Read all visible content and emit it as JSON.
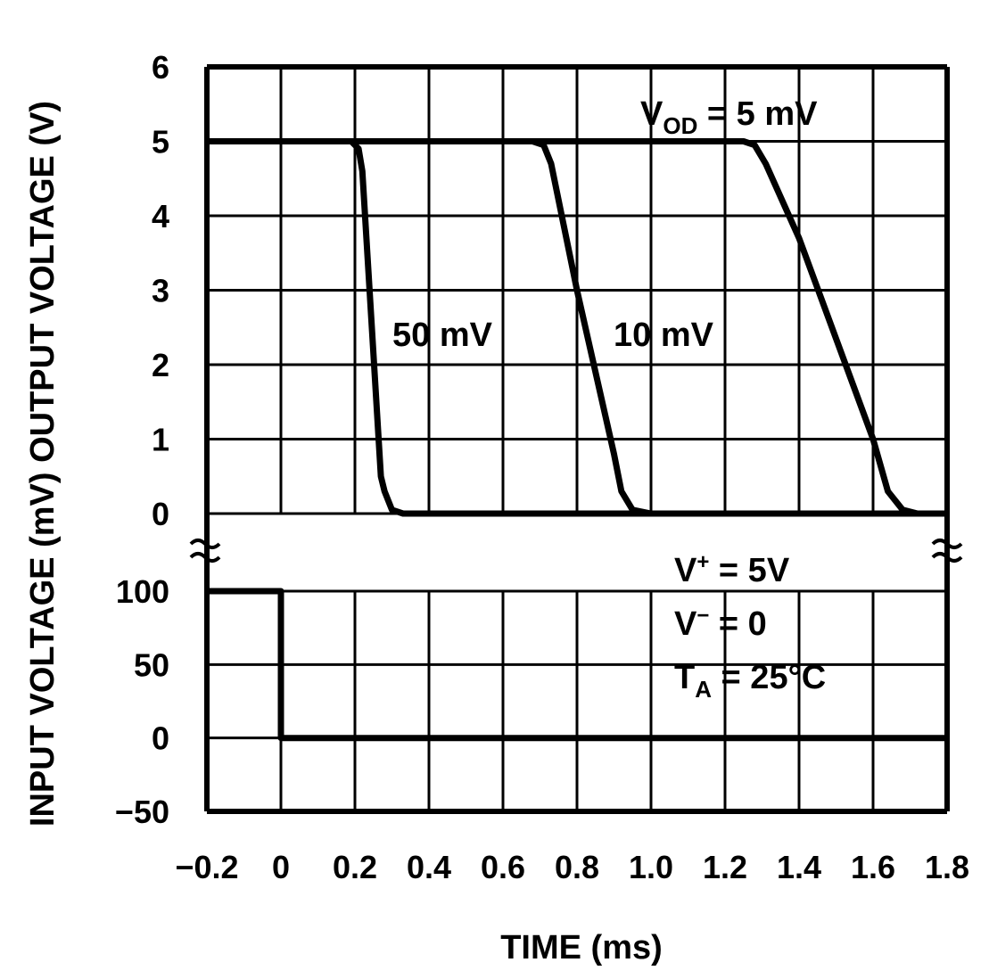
{
  "chart_data": {
    "type": "line",
    "xlabel": "TIME (ms)",
    "ylabel": "INPUT VOLTAGE (mV) OUTPUT VOLTAGE (V)",
    "xlim": [
      -0.2,
      1.8
    ],
    "x_ticks": [
      "−0.2",
      "0",
      "0.2",
      "0.4",
      "0.6",
      "0.8",
      "1.0",
      "1.2",
      "1.4",
      "1.6",
      "1.8"
    ],
    "grid": true,
    "output_axis": {
      "unit": "V",
      "ylim": [
        0,
        6
      ],
      "ticks": [
        "0",
        "1",
        "2",
        "3",
        "4",
        "5",
        "6"
      ]
    },
    "input_axis": {
      "unit": "mV",
      "ylim": [
        -50,
        100
      ],
      "ticks": [
        "100",
        "50",
        "0",
        "−50"
      ]
    },
    "series": [
      {
        "name": "50 mV",
        "axis": "output",
        "x": [
          -0.2,
          0.19,
          0.21,
          0.22,
          0.27,
          0.28,
          0.3,
          0.33,
          1.8
        ],
        "y": [
          5,
          5,
          4.9,
          4.6,
          0.5,
          0.3,
          0.05,
          0,
          0
        ]
      },
      {
        "name": "10 mV",
        "axis": "output",
        "x": [
          -0.2,
          0.68,
          0.71,
          0.73,
          0.8,
          0.9,
          0.92,
          0.95,
          1.0,
          1.8
        ],
        "y": [
          5,
          5,
          4.95,
          4.7,
          3,
          0.8,
          0.3,
          0.05,
          0,
          0
        ]
      },
      {
        "name": "V_OD = 5 mV",
        "axis": "output",
        "x": [
          -0.2,
          1.25,
          1.28,
          1.31,
          1.4,
          1.6,
          1.64,
          1.68,
          1.72,
          1.8
        ],
        "y": [
          5,
          5,
          4.95,
          4.7,
          3.7,
          1,
          0.3,
          0.05,
          0,
          0
        ]
      },
      {
        "axis": "input",
        "x": [
          -0.2,
          0,
          0,
          1.8
        ],
        "y": [
          100,
          100,
          0,
          0
        ]
      }
    ],
    "annotations": {
      "vod_label": "V",
      "vod_sub": "OD",
      "vod_rest": " = 5 mV",
      "label_50": "50 mV",
      "label_10": "10 mV",
      "vplus": "V",
      "vplus_sup": "+",
      "vplus_rest": " = 5V",
      "vminus": "V",
      "vminus_sup": "−",
      "vminus_rest": " = 0",
      "ta": "T",
      "ta_sub": "A",
      "ta_rest": " = 25°C"
    }
  }
}
